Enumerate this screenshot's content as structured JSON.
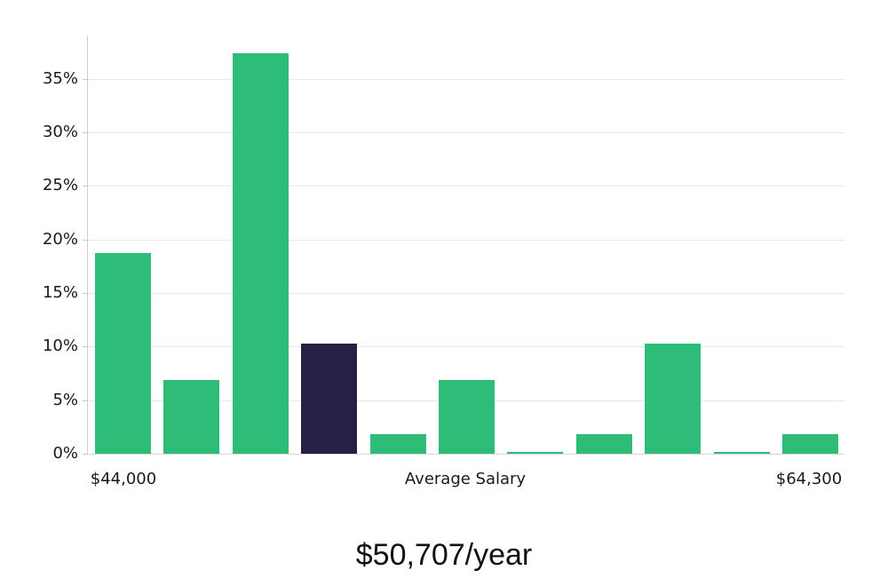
{
  "chart_data": {
    "type": "bar",
    "title": "$50,707/year",
    "values": [
      18.7,
      6.9,
      37.4,
      10.3,
      1.8,
      6.9,
      0.2,
      1.8,
      10.3,
      0.2,
      1.8
    ],
    "value_unit": "%",
    "highlight_index": 3,
    "categories": [
      "bin-1",
      "bin-2",
      "bin-3",
      "bin-4",
      "bin-5",
      "bin-6",
      "bin-7",
      "bin-8",
      "bin-9",
      "bin-10",
      "bin-11"
    ],
    "x_labels": {
      "min": "$44,000",
      "mid": "Average Salary",
      "max": "$64,300"
    },
    "y_ticks": [
      {
        "value": 0,
        "label": "0%"
      },
      {
        "value": 5,
        "label": "5%"
      },
      {
        "value": 10,
        "label": "10%"
      },
      {
        "value": 15,
        "label": "15%"
      },
      {
        "value": 20,
        "label": "20%"
      },
      {
        "value": 25,
        "label": "25%"
      },
      {
        "value": 30,
        "label": "30%"
      },
      {
        "value": 35,
        "label": "35%"
      }
    ],
    "ylim": [
      0,
      39.05
    ],
    "grid": true,
    "legend_position": "none",
    "colors": {
      "bar": "#2dbd78",
      "highlight_bar": "#262144",
      "gridline": "#e8e8e8",
      "axis": "#cfcfcf",
      "tick": "#c9c9c9",
      "text": "#1a1a1a"
    }
  }
}
